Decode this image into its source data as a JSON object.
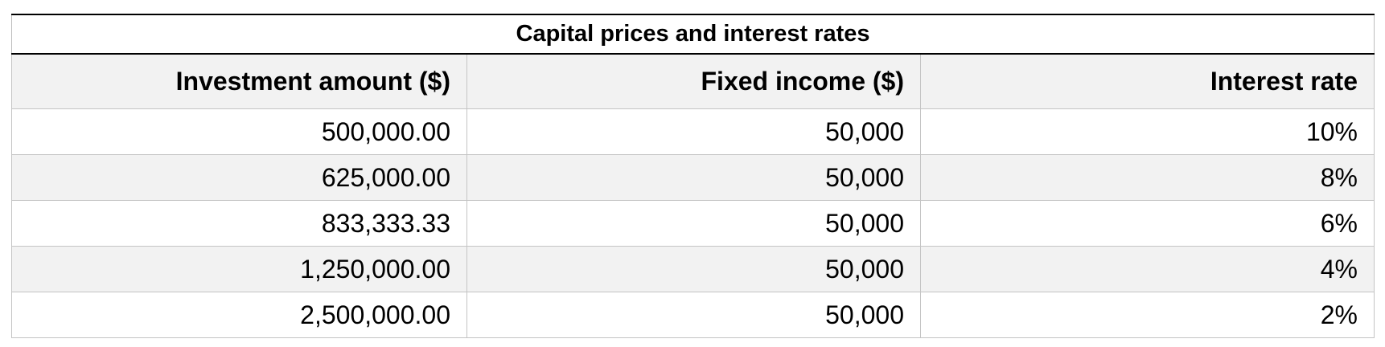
{
  "table": {
    "title": "Capital prices and interest rates",
    "headers": [
      "Investment amount ($)",
      "Fixed income ($)",
      "Interest rate"
    ],
    "rows": [
      [
        "500,000.00",
        "50,000",
        "10%"
      ],
      [
        "625,000.00",
        "50,000",
        "8%"
      ],
      [
        "833,333.33",
        "50,000",
        "6%"
      ],
      [
        "1,250,000.00",
        "50,000",
        "4%"
      ],
      [
        "2,500,000.00",
        "50,000",
        "2%"
      ]
    ],
    "colors": {
      "header_bg": "#f2f2f2",
      "stripe_bg": "#f2f2f2",
      "grid": "#c4c4c4",
      "rule": "#000000"
    }
  }
}
